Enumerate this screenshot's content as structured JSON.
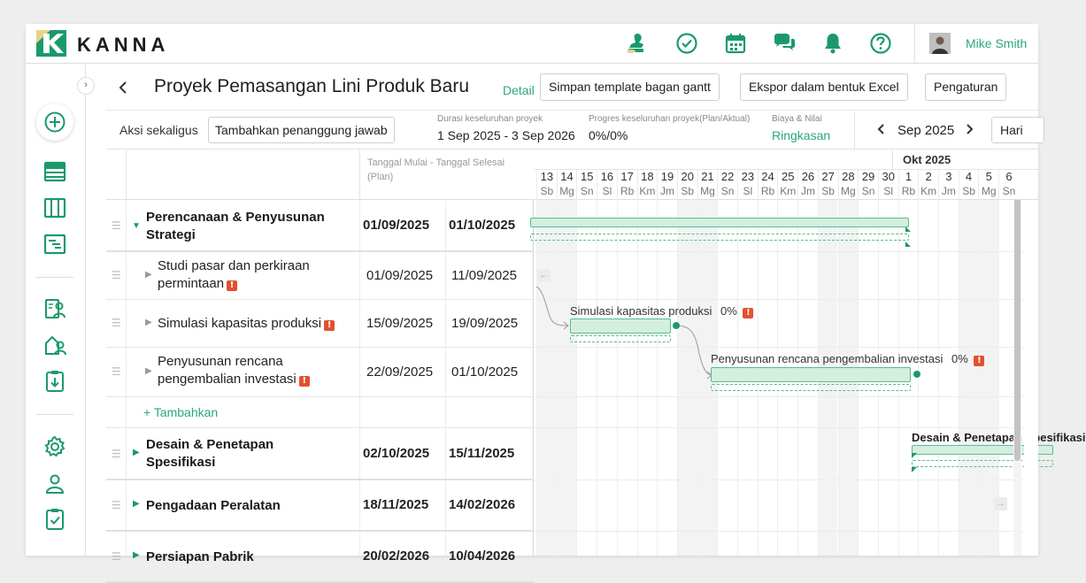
{
  "app": {
    "logo_text": "KANNA",
    "user_name": "Mike Smith",
    "colors": {
      "accent": "#2aa876",
      "accent_dark": "#1a9a6a",
      "warning": "#e2502e",
      "bar_fill": "#d4eedf"
    },
    "top_icons": [
      "stamp-icon",
      "check-circle-icon",
      "calendar-icon",
      "chat-icon",
      "bell-icon",
      "help-icon"
    ]
  },
  "sidebar": {
    "icons": [
      "add-circle-icon",
      "list-view-icon",
      "board-view-icon",
      "gantt-view-icon",
      "project-people-icon",
      "building-user-icon",
      "download-doc-icon",
      "settings-icon",
      "user-icon",
      "clipboard-check-icon"
    ]
  },
  "header": {
    "title": "Proyek Pemasangan Lini Produk Baru",
    "detail_link": "Detail",
    "btn_save_template": "Simpan template bagan gantt",
    "btn_export": "Ekspor dalam bentuk Excel",
    "btn_settings": "Pengaturan"
  },
  "info": {
    "bulk_action_label": "Aksi sekaligus",
    "add_person_btn": "Tambahkan penanggung jawab",
    "duration_caption": "Durasi keseluruhan proyek",
    "duration_value": "1 Sep 2025 - 3 Sep 2026",
    "progress_caption": "Progres keseluruhan proyek(Plan/Aktual)",
    "progress_value": "0%/0%",
    "cost_caption": "Biaya & Nilai",
    "cost_link": "Ringkasan",
    "month_label": "Sep 2025",
    "view_btn": "Hari"
  },
  "table": {
    "date_header": "Tanggal Mulai - Tanggal Selesai (Plan)",
    "add_link": "+ Tambahkan",
    "rows": [
      {
        "name": "Perencanaan & Penyusunan Strategi",
        "start": "01/09/2025",
        "end": "01/10/2025",
        "parent": true
      },
      {
        "name": "Studi pasar dan perkiraan permintaan",
        "start": "01/09/2025",
        "end": "11/09/2025",
        "parent": false,
        "warning": true
      },
      {
        "name": "Simulasi kapasitas produksi",
        "start": "15/09/2025",
        "end": "19/09/2025",
        "parent": false,
        "warning": true
      },
      {
        "name": "Penyusunan rencana pengembalian investasi",
        "start": "22/09/2025",
        "end": "01/10/2025",
        "parent": false,
        "warning": true
      },
      {
        "name": "Desain & Penetapan Spesifikasi",
        "start": "02/10/2025",
        "end": "15/11/2025",
        "parent": true
      },
      {
        "name": "Pengadaan Peralatan",
        "start": "18/11/2025",
        "end": "14/02/2026",
        "parent": true
      },
      {
        "name": "Persiapan Pabrik",
        "start": "20/02/2026",
        "end": "10/04/2026",
        "parent": true
      }
    ]
  },
  "gantt": {
    "month_oct": "Okt 2025",
    "warning_mark": "!",
    "days": [
      {
        "d": "13",
        "w": "Sb"
      },
      {
        "d": "14",
        "w": "Mg"
      },
      {
        "d": "15",
        "w": "Sn"
      },
      {
        "d": "16",
        "w": "Sl"
      },
      {
        "d": "17",
        "w": "Rb"
      },
      {
        "d": "18",
        "w": "Km"
      },
      {
        "d": "19",
        "w": "Jm"
      },
      {
        "d": "20",
        "w": "Sb"
      },
      {
        "d": "21",
        "w": "Mg"
      },
      {
        "d": "22",
        "w": "Sn"
      },
      {
        "d": "23",
        "w": "Sl"
      },
      {
        "d": "24",
        "w": "Rb"
      },
      {
        "d": "25",
        "w": "Km"
      },
      {
        "d": "26",
        "w": "Jm"
      },
      {
        "d": "27",
        "w": "Sb"
      },
      {
        "d": "28",
        "w": "Mg"
      },
      {
        "d": "29",
        "w": "Sn"
      },
      {
        "d": "30",
        "w": "Sl"
      },
      {
        "d": "1",
        "w": "Rb"
      },
      {
        "d": "2",
        "w": "Km"
      },
      {
        "d": "3",
        "w": "Jm"
      },
      {
        "d": "4",
        "w": "Sb"
      },
      {
        "d": "5",
        "w": "Mg"
      },
      {
        "d": "6",
        "w": "Sn"
      }
    ],
    "bar_labels": {
      "sim": "Simulasi kapasitas produksi",
      "sim_progress": "0%",
      "roi": "Penyusunan rencana pengembalian investasi",
      "roi_progress": "0%",
      "design": "Desain & Penetapan Spesifikasi"
    }
  }
}
